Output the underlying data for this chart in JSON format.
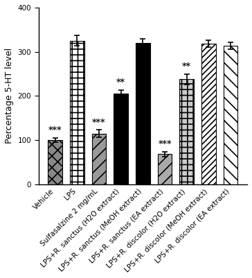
{
  "categories": [
    "Vehicle",
    "LPS",
    "Sulfasalzine 2 mg/mL",
    "LPS+R. sanctus (H2O extract)",
    "LPS+R. sanctus (MeOH extract)",
    "LPS+R. sanctus (EA extract)",
    "LPS+R. discolor (H2O extract)",
    "LPS+R. discolor (MeOH extract)",
    "LPS+R. discolor (EA extract)"
  ],
  "values": [
    100,
    325,
    115,
    205,
    320,
    68,
    238,
    318,
    313
  ],
  "errors": [
    5,
    12,
    8,
    8,
    10,
    6,
    12,
    8,
    8
  ],
  "significance": [
    "***",
    "",
    "***",
    "**",
    "",
    "***",
    "**",
    "",
    ""
  ],
  "bar_styles": [
    {
      "fc": "#888888",
      "hatch": "xxx",
      "ec": "black"
    },
    {
      "fc": "white",
      "hatch": "+++",
      "ec": "black"
    },
    {
      "fc": "#aaaaaa",
      "hatch": "///",
      "ec": "black"
    },
    {
      "fc": "black",
      "hatch": "|||",
      "ec": "black"
    },
    {
      "fc": "black",
      "hatch": "===",
      "ec": "black"
    },
    {
      "fc": "#aaaaaa",
      "hatch": "///",
      "ec": "black"
    },
    {
      "fc": "#cccccc",
      "hatch": "+++",
      "ec": "black"
    },
    {
      "fc": "white",
      "hatch": "///",
      "ec": "black"
    },
    {
      "fc": "white",
      "hatch": "\\\\\\\\\\\\",
      "ec": "black"
    }
  ],
  "ylabel": "Percentage 5-HT level",
  "ylim": [
    0,
    400
  ],
  "yticks": [
    0,
    100,
    200,
    300,
    400
  ],
  "bar_width": 0.65,
  "figsize": [
    3.64,
    4.01
  ],
  "dpi": 100,
  "sig_fontsize": 9,
  "ylabel_fontsize": 9,
  "tick_fontsize": 7.5
}
